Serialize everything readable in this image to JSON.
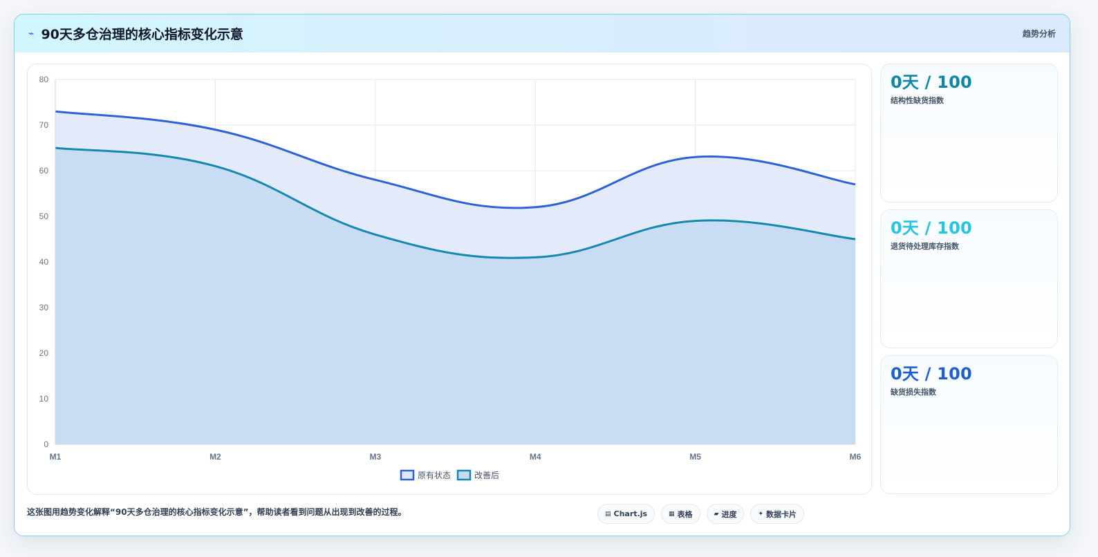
{
  "header": {
    "icon": "lightning-icon",
    "title": "90天多仓治理的核心指标变化示意",
    "tag": "趋势分析"
  },
  "chart_data": {
    "type": "area",
    "categories": [
      "M1",
      "M2",
      "M3",
      "M4",
      "M5",
      "M6"
    ],
    "series": [
      {
        "name": "原有状态",
        "values": [
          73,
          69,
          58,
          52,
          63,
          57
        ],
        "color": "#2c62d6",
        "fill": "#e0e9fb"
      },
      {
        "name": "改善后",
        "values": [
          65,
          61,
          46,
          41,
          49,
          45
        ],
        "color": "#1589ad",
        "fill": "#c4dcf2"
      }
    ],
    "ylim": [
      0,
      80
    ],
    "yticks": [
      0,
      10,
      20,
      30,
      40,
      50,
      60,
      70,
      80
    ],
    "grid": true,
    "legend": "bottom"
  },
  "kpis": [
    {
      "value": "0天 / 100",
      "label": "结构性缺货指数",
      "color": "#0e87a6"
    },
    {
      "value": "0天 / 100",
      "label": "退货待处理库存指数",
      "color": "#22c6e0"
    },
    {
      "value": "0天 / 100",
      "label": "缺货损失指数",
      "color": "#1d5fd1"
    }
  ],
  "footer": {
    "note": "这张图用趋势变化解释“90天多仓治理的核心指标变化示意”，帮助读者看到问题从出现到改善的过程。",
    "chips": [
      {
        "icon": "chart-icon",
        "glyph": "▤",
        "label": "Chart.js"
      },
      {
        "icon": "table-icon",
        "glyph": "▦",
        "label": "表格"
      },
      {
        "icon": "progress-icon",
        "glyph": "▰",
        "label": "进度"
      },
      {
        "icon": "sparkle-icon",
        "glyph": "✦",
        "label": "数据卡片"
      }
    ]
  }
}
